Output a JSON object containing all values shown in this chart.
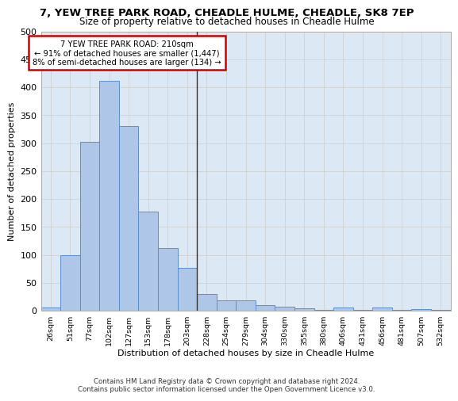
{
  "title": "7, YEW TREE PARK ROAD, CHEADLE HULME, CHEADLE, SK8 7EP",
  "subtitle": "Size of property relative to detached houses in Cheadle Hulme",
  "xlabel": "Distribution of detached houses by size in Cheadle Hulme",
  "ylabel": "Number of detached properties",
  "categories": [
    "26sqm",
    "51sqm",
    "77sqm",
    "102sqm",
    "127sqm",
    "153sqm",
    "178sqm",
    "203sqm",
    "228sqm",
    "254sqm",
    "279sqm",
    "304sqm",
    "330sqm",
    "355sqm",
    "380sqm",
    "406sqm",
    "431sqm",
    "456sqm",
    "481sqm",
    "507sqm",
    "532sqm"
  ],
  "values": [
    5,
    100,
    302,
    411,
    330,
    177,
    112,
    77,
    30,
    18,
    18,
    10,
    7,
    4,
    1,
    5,
    1,
    5,
    1,
    3,
    2
  ],
  "bar_color": "#aec6e8",
  "bar_edge_color": "#5b8fcc",
  "vline_position": 7.5,
  "vline_color": "#333333",
  "annotation_text_line1": "7 YEW TREE PARK ROAD: 210sqm",
  "annotation_text_line2": "← 91% of detached houses are smaller (1,447)",
  "annotation_text_line3": "8% of semi-detached houses are larger (134) →",
  "annotation_box_color": "#cc0000",
  "footer_line1": "Contains HM Land Registry data © Crown copyright and database right 2024.",
  "footer_line2": "Contains public sector information licensed under the Open Government Licence v3.0.",
  "ylim": [
    0,
    500
  ],
  "yticks": [
    0,
    50,
    100,
    150,
    200,
    250,
    300,
    350,
    400,
    450,
    500
  ],
  "bg_color": "#ffffff",
  "grid_color": "#cccccc",
  "ax_bg_color": "#dde8f5"
}
